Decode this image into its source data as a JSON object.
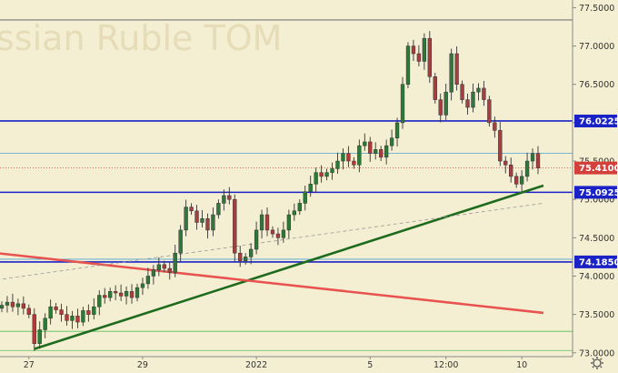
{
  "chart_data": {
    "type": "candlestick",
    "title": "Russian Ruble TOM",
    "title_visible": "ssian Ruble TOM",
    "ylim": [
      72.95,
      77.6
    ],
    "y_ticks": [
      77.5,
      77.0,
      76.5,
      76.0,
      75.5,
      75.0,
      74.5,
      74.0,
      73.5,
      73.0
    ],
    "y_tick_labels": [
      "77.5000",
      "77.0000",
      "76.5000",
      "76.0000",
      "75.5000",
      "75.0000",
      "74.5000",
      "74.0000",
      "73.5000",
      "73.0000"
    ],
    "x_tick_labels": [
      "27",
      "29",
      "2022",
      "5",
      "12:00",
      "10"
    ],
    "x_tick_bars": [
      5,
      26,
      47,
      68,
      82,
      96
    ],
    "n_bars": 100,
    "current_price": {
      "value": 75.41,
      "label": "75.4100",
      "color": "#d43f3a"
    },
    "levels": [
      {
        "value": 76.0225,
        "label": "76.0225",
        "color": "#1a22c6"
      },
      {
        "value": 75.0925,
        "label": "75.0925",
        "color": "#1a22c6"
      },
      {
        "value": 74.185,
        "label": "74.1850",
        "color": "#1a22c6"
      }
    ],
    "thin_levels": [
      {
        "value": 77.34,
        "color": "#555555"
      },
      {
        "value": 75.6,
        "color": "#4aa3d4"
      },
      {
        "value": 74.22,
        "color": "#4aa3d4"
      },
      {
        "value": 73.28,
        "color": "#58c058"
      },
      {
        "value": 73.03,
        "color": "#58c058"
      }
    ],
    "trendlines": [
      {
        "name": "support",
        "color": "#1e6b1e",
        "from": {
          "bar": 6,
          "y": 73.05
        },
        "to": {
          "bar": 100,
          "y": 75.18
        }
      },
      {
        "name": "resistance",
        "color": "#e8524f",
        "from": {
          "bar": -1,
          "y": 74.3
        },
        "to": {
          "bar": 100,
          "y": 73.52
        }
      },
      {
        "name": "dashed",
        "color": "#999999",
        "from": {
          "bar": -1,
          "y": 73.95
        },
        "to": {
          "bar": 100,
          "y": 74.95
        }
      }
    ],
    "colors": {
      "up": "#2c7a38",
      "down": "#b03a3a",
      "background": "#f4efd3"
    },
    "closes": [
      73.62,
      73.66,
      73.6,
      73.64,
      73.58,
      73.5,
      73.12,
      73.3,
      73.45,
      73.6,
      73.56,
      73.5,
      73.42,
      73.48,
      73.4,
      73.55,
      73.5,
      73.6,
      73.75,
      73.72,
      73.8,
      73.78,
      73.74,
      73.8,
      73.72,
      73.85,
      73.9,
      74.0,
      74.08,
      74.15,
      74.1,
      74.05,
      74.3,
      74.6,
      74.9,
      74.85,
      74.7,
      74.75,
      74.6,
      74.8,
      74.95,
      75.05,
      75.0,
      74.3,
      74.2,
      74.25,
      74.35,
      74.6,
      74.8,
      74.6,
      74.55,
      74.5,
      74.6,
      74.8,
      74.85,
      74.95,
      75.1,
      75.2,
      75.35,
      75.3,
      75.35,
      75.4,
      75.5,
      75.6,
      75.5,
      75.45,
      75.7,
      75.75,
      75.6,
      75.65,
      75.55,
      75.7,
      75.8,
      76.0,
      76.5,
      77.0,
      76.9,
      76.8,
      77.1,
      76.6,
      76.3,
      76.1,
      76.4,
      76.9,
      76.5,
      76.3,
      76.2,
      76.4,
      76.45,
      76.3,
      76.0,
      75.9,
      75.5,
      75.45,
      75.3,
      75.2,
      75.3,
      75.5,
      75.6,
      75.41
    ]
  }
}
